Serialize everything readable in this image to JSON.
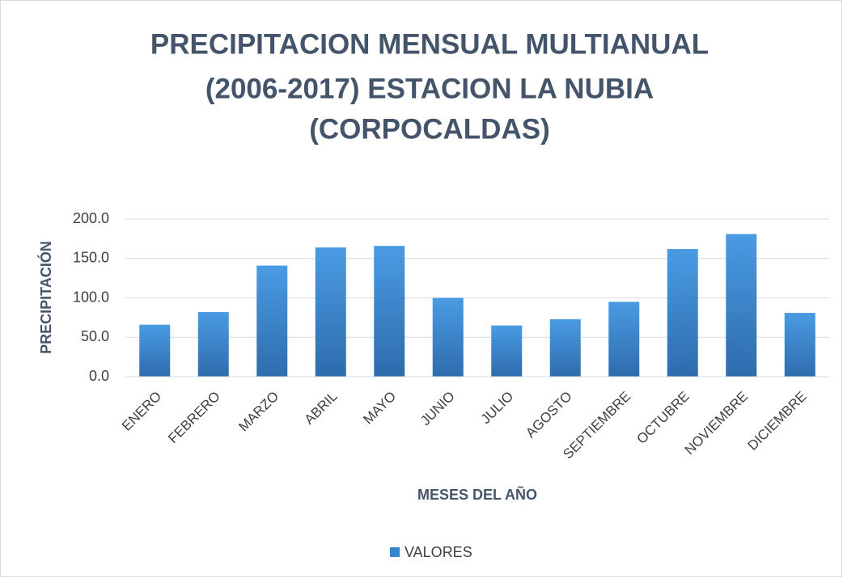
{
  "chart_data": {
    "type": "bar",
    "title": [
      "PRECIPITACION MENSUAL MULTIANUAL",
      "(2006-2017) ESTACION LA NUBIA",
      "(CORPOCALDAS)"
    ],
    "x_label": "MESES DEL AÑO",
    "y_label": "PRECIPITACIÓN",
    "categories": [
      "ENERO",
      "FEBRERO",
      "MARZO",
      "ABRIL",
      "MAYO",
      "JUNIO",
      "JULIO",
      "AGOSTO",
      "SEPTIEMBRE",
      "OCTUBRE",
      "NOVIEMBRE",
      "DICIEMBRE"
    ],
    "series": [
      {
        "name": "VALORES",
        "color": "#3a83cf",
        "values": [
          66,
          82,
          141,
          164,
          166,
          100,
          65,
          73,
          95,
          162,
          181,
          81
        ]
      }
    ],
    "ylim": [
      0,
      200
    ],
    "yticks": [
      {
        "value": 0,
        "label": "0.0"
      },
      {
        "value": 50,
        "label": "50.0"
      },
      {
        "value": 100,
        "label": "100.0"
      },
      {
        "value": 150,
        "label": "150.0"
      },
      {
        "value": 200,
        "label": "200.0"
      }
    ],
    "grid": true,
    "legend": "bottom"
  }
}
